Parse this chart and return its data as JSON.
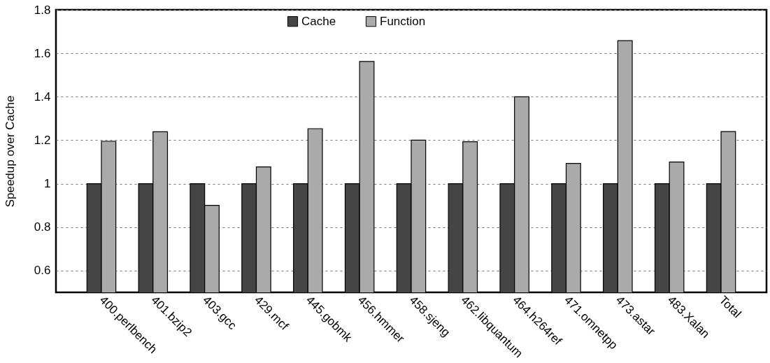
{
  "chart_data": {
    "type": "bar",
    "ylabel": "Speedup over Cache",
    "categories": [
      "400.perlbench",
      "401.bzip2",
      "403.gcc",
      "429.mcf",
      "445.gobmk",
      "456.hmmer",
      "458.sjeng",
      "462.libquantum",
      "464.h264ref",
      "471.omnetpp",
      "473.astar",
      "483.Xalan",
      "Total"
    ],
    "series": [
      {
        "name": "Cache",
        "color": "#454545",
        "values": [
          1,
          1,
          1,
          1,
          1,
          1,
          1,
          1,
          1,
          1,
          1,
          1,
          1
        ]
      },
      {
        "name": "Function",
        "color": "#aaaaaa",
        "values": [
          1.195,
          1.239,
          0.9,
          1.077,
          1.253,
          1.562,
          1.2,
          1.193,
          1.4,
          1.093,
          1.658,
          1.1,
          1.24
        ]
      }
    ],
    "ylim": [
      0.5,
      1.8
    ],
    "yticks": [
      0.6,
      0.8,
      1,
      1.2,
      1.4,
      1.6,
      1.8
    ],
    "grid": "y",
    "legend": "top"
  }
}
